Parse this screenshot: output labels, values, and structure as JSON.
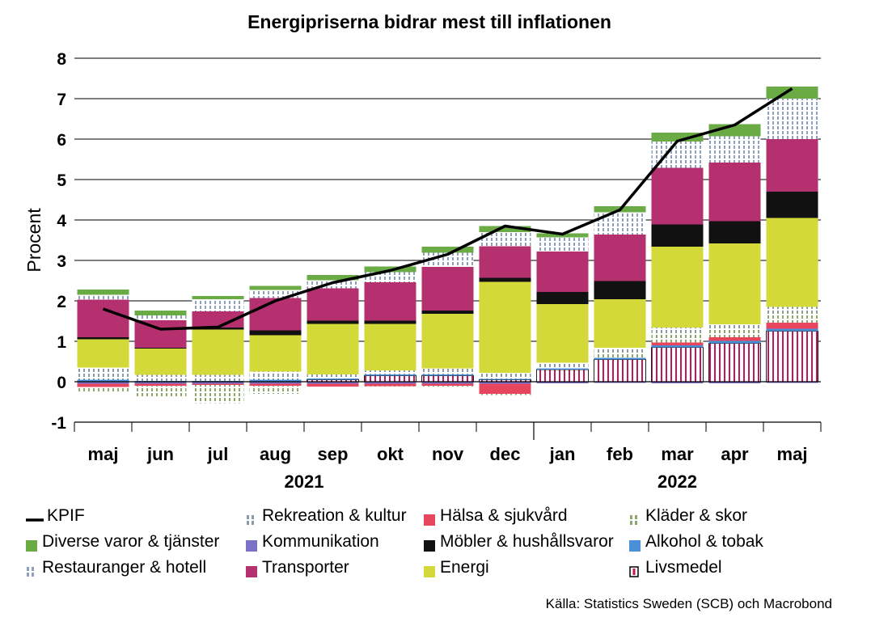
{
  "chart_data": {
    "type": "bar",
    "stacked": true,
    "title": "Energipriserna bidrar mest till inflationen",
    "ylabel": "Procent",
    "ylim": [
      -1,
      8
    ],
    "yticks": [
      -1,
      0,
      1,
      2,
      3,
      4,
      5,
      6,
      7,
      8
    ],
    "grid": true,
    "categories": [
      "maj",
      "jun",
      "jul",
      "aug",
      "sep",
      "okt",
      "nov",
      "dec",
      "jan",
      "feb",
      "mar",
      "apr",
      "maj"
    ],
    "year_labels": [
      {
        "label": "2021",
        "span": [
          0,
          7
        ]
      },
      {
        "label": "2022",
        "span": [
          8,
          12
        ]
      }
    ],
    "series": [
      {
        "name": "Livsmedel",
        "key": "livsmedel",
        "color": "#c2185b",
        "pattern": "food",
        "values": [
          0.0,
          0.0,
          0.0,
          0.0,
          0.05,
          0.15,
          0.15,
          0.05,
          0.3,
          0.55,
          0.85,
          0.95,
          1.25
        ]
      },
      {
        "name": "Alkohol & tobak",
        "key": "alkohol",
        "color": "#4a90d9",
        "pattern": "solid",
        "values": [
          0.05,
          0.02,
          0.02,
          0.05,
          0.03,
          0.03,
          0.03,
          0.02,
          0.03,
          0.04,
          0.05,
          0.06,
          0.06
        ]
      },
      {
        "name": "Kommunikation",
        "key": "kommunikation",
        "color": "#7b72c8",
        "pattern": "solid",
        "values": [
          -0.05,
          -0.05,
          -0.05,
          -0.05,
          -0.05,
          -0.05,
          -0.05,
          -0.05,
          -0.04,
          -0.03,
          -0.04,
          -0.04,
          -0.03
        ]
      },
      {
        "name": "Hälsa & sjukvård",
        "key": "halsa",
        "color": "#e8455f",
        "pattern": "solid",
        "values": [
          -0.08,
          -0.05,
          -0.03,
          -0.05,
          -0.07,
          -0.06,
          -0.05,
          -0.25,
          0.0,
          0.0,
          0.07,
          0.09,
          0.15
        ]
      },
      {
        "name": "Kläder & skor",
        "key": "klader",
        "color": "#8fa86a",
        "pattern": "hatch",
        "values": [
          -0.12,
          -0.3,
          -0.45,
          -0.2,
          -0.03,
          -0.02,
          -0.03,
          -0.03,
          0.02,
          0.15,
          0.25,
          0.2,
          0.25
        ]
      },
      {
        "name": "Rekreation & kultur",
        "key": "rekreation",
        "color": "#8a9aa8",
        "pattern": "hatch",
        "values": [
          0.3,
          0.15,
          0.15,
          0.2,
          0.1,
          0.1,
          0.15,
          0.15,
          0.12,
          0.1,
          0.12,
          0.12,
          0.14
        ]
      },
      {
        "name": "Energi",
        "key": "energi",
        "color": "#d4d93a",
        "pattern": "solid",
        "values": [
          0.7,
          0.65,
          1.12,
          0.9,
          1.25,
          1.15,
          1.35,
          2.25,
          1.45,
          1.2,
          2.0,
          2.0,
          2.2
        ]
      },
      {
        "name": "Möbler & hushållsvaror",
        "key": "mobler",
        "color": "#111111",
        "pattern": "solid",
        "values": [
          0.05,
          0.02,
          0.05,
          0.12,
          0.08,
          0.08,
          0.08,
          0.1,
          0.3,
          0.45,
          0.55,
          0.55,
          0.65
        ]
      },
      {
        "name": "Transporter",
        "key": "transporter",
        "color": "#b5306f",
        "pattern": "solid",
        "values": [
          0.93,
          0.68,
          0.4,
          0.8,
          0.8,
          0.95,
          1.08,
          0.78,
          1.0,
          1.15,
          1.4,
          1.45,
          1.3
        ]
      },
      {
        "name": "Restauranger & hotell",
        "key": "restauranger",
        "color": "#8ea0c0",
        "pattern": "hatch",
        "values": [
          0.12,
          0.12,
          0.3,
          0.2,
          0.2,
          0.25,
          0.35,
          0.35,
          0.35,
          0.55,
          0.65,
          0.65,
          1.0
        ]
      },
      {
        "name": "Diverse varor & tjänster",
        "key": "diverse",
        "color": "#6aab45",
        "pattern": "solid",
        "values": [
          0.13,
          0.12,
          0.08,
          0.1,
          0.13,
          0.14,
          0.15,
          0.15,
          0.1,
          0.15,
          0.22,
          0.3,
          0.3
        ]
      }
    ],
    "line": {
      "name": "KPIF",
      "color": "#000000",
      "values": [
        1.8,
        1.3,
        1.35,
        2.0,
        2.45,
        2.75,
        3.15,
        3.85,
        3.65,
        4.25,
        5.95,
        6.35,
        7.25
      ]
    },
    "legend_placement": "bottom"
  },
  "legend": [
    {
      "label": "KPIF",
      "key": "kpif"
    },
    {
      "label": "Rekreation & kultur",
      "key": "rekreation"
    },
    {
      "label": "Hälsa & sjukvård",
      "key": "halsa"
    },
    {
      "label": "Kläder & skor",
      "key": "klader"
    },
    {
      "label": "Diverse varor & tjänster",
      "key": "diverse"
    },
    {
      "label": "Kommunikation",
      "key": "kommunikation"
    },
    {
      "label": "Möbler & hushållsvaror",
      "key": "mobler"
    },
    {
      "label": "Alkohol & tobak",
      "key": "alkohol"
    },
    {
      "label": "Restauranger & hotell",
      "key": "restauranger"
    },
    {
      "label": "Transporter",
      "key": "transporter"
    },
    {
      "label": "Energi",
      "key": "energi"
    },
    {
      "label": "Livsmedel",
      "key": "livsmedel"
    }
  ],
  "source": "Källa: Statistics Sweden (SCB) och Macrobond"
}
